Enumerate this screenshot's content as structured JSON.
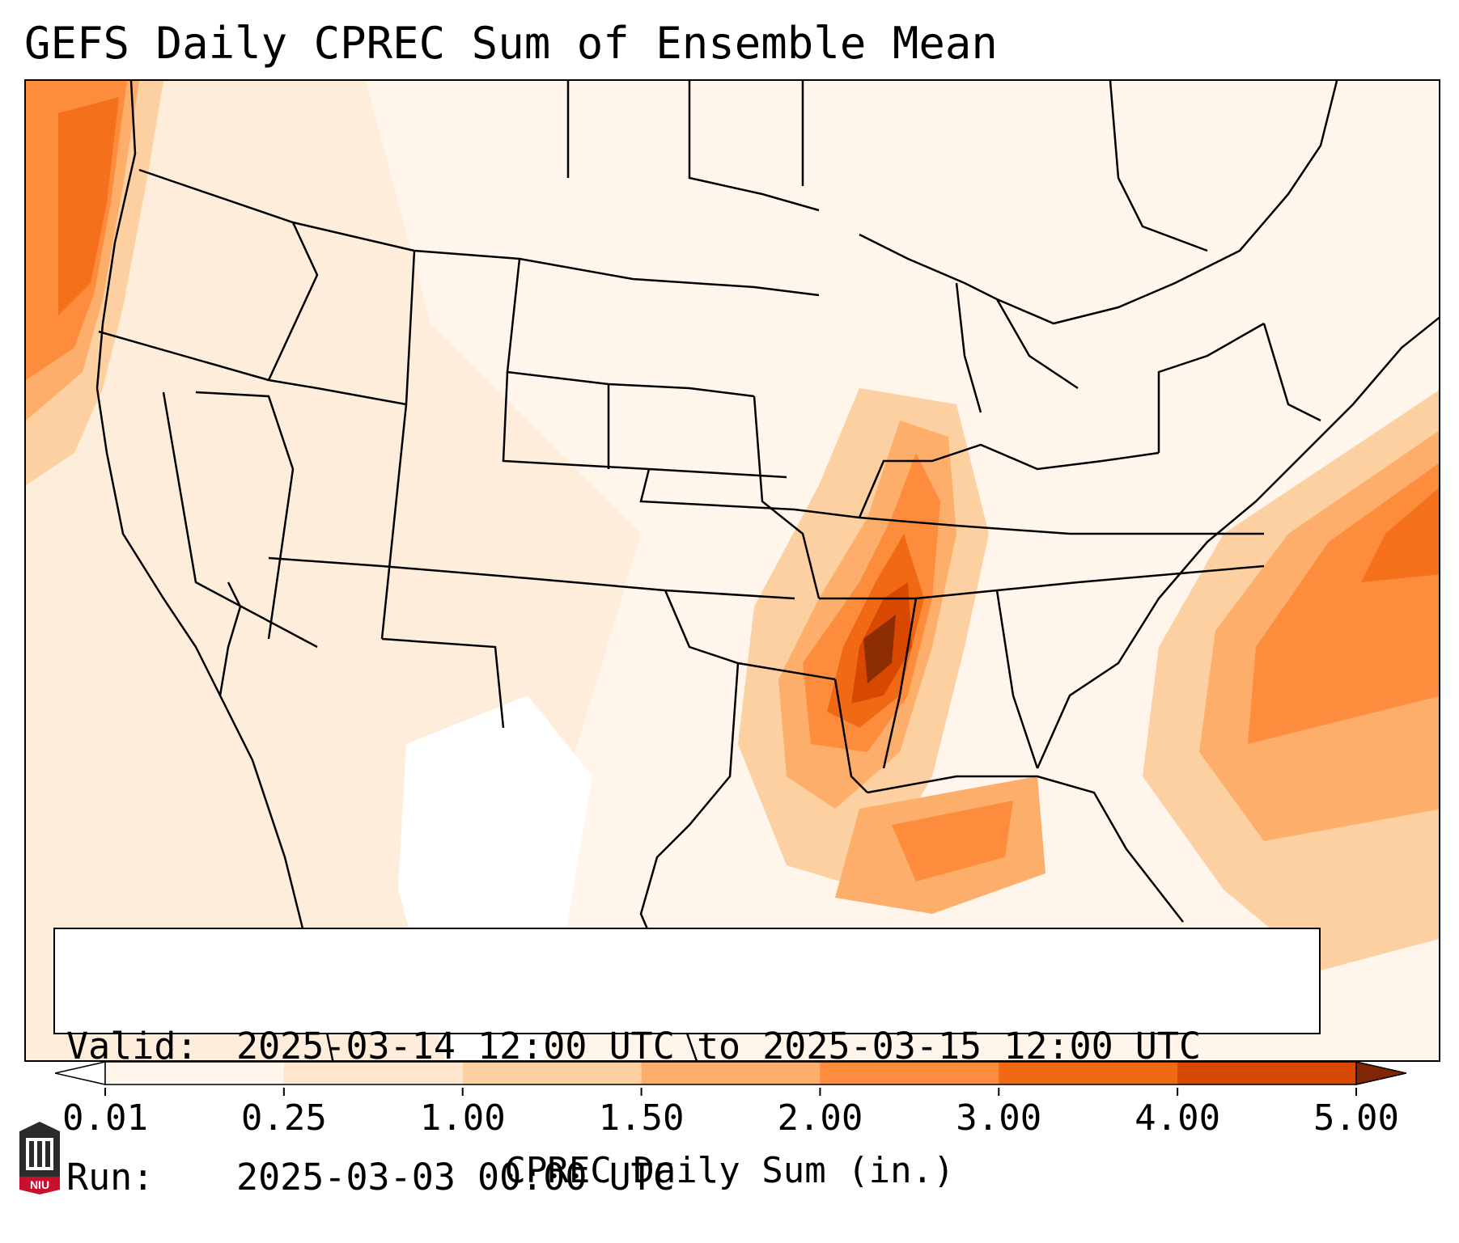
{
  "title": "GEFS Daily CPREC Sum of Ensemble Mean",
  "info": {
    "valid_label": "Valid:",
    "valid_value": "2025-03-14 12:00 UTC to 2025-03-15 12:00 UTC",
    "run_label": "Run:",
    "run_value": "2025-03-03 00:00 UTC"
  },
  "colorbar": {
    "label": "CPREC Daily Sum (in.)",
    "ticks": [
      "0.01",
      "0.25",
      "1.00",
      "1.50",
      "2.00",
      "3.00",
      "4.00",
      "5.00"
    ],
    "colors": [
      "#fff5eb",
      "#fee6ce",
      "#fdd0a2",
      "#fdae6b",
      "#fd8d3c",
      "#f16913",
      "#d94801",
      "#8c2d04"
    ],
    "under_color": "#ffffff",
    "over_color": "#7f2704"
  },
  "logo": {
    "text": "NIU",
    "color": "#c8102e"
  }
}
